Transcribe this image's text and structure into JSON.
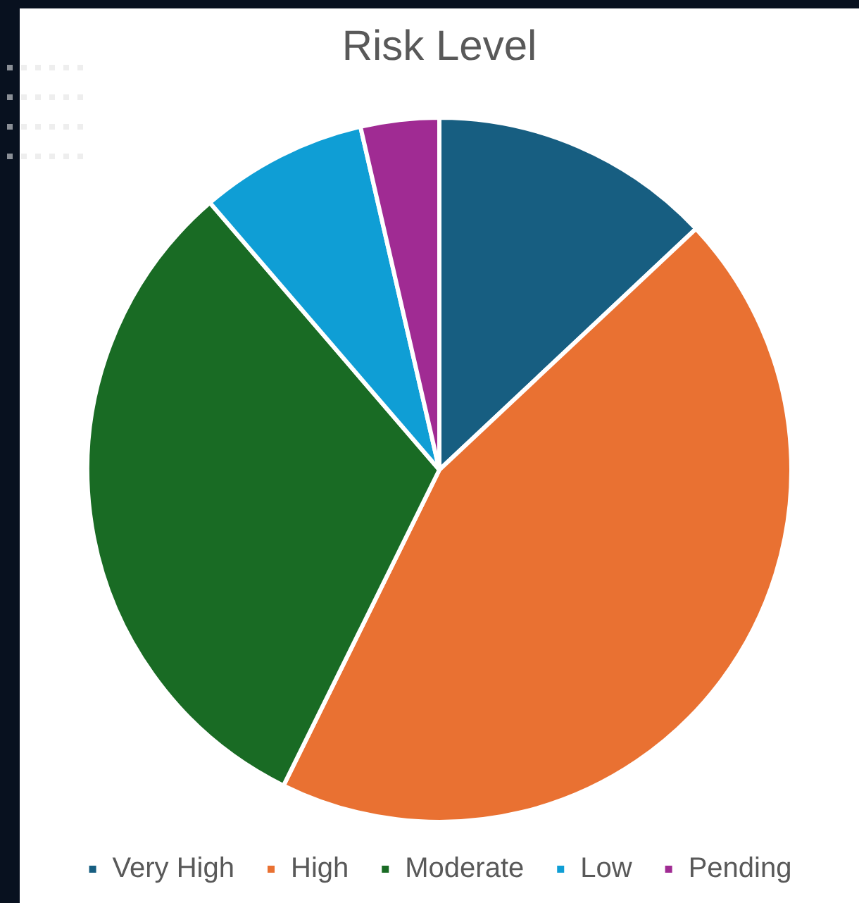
{
  "chart_data": {
    "type": "pie",
    "title": "Risk Level",
    "categories": [
      "Very High",
      "High",
      "Moderate",
      "Low",
      "Pending"
    ],
    "values": [
      13,
      44.3,
      31.4,
      7.7,
      3.6
    ],
    "colors": [
      "#175e81",
      "#e97132",
      "#196b24",
      "#0f9ed5",
      "#a02b93"
    ],
    "legend": "bottom"
  }
}
